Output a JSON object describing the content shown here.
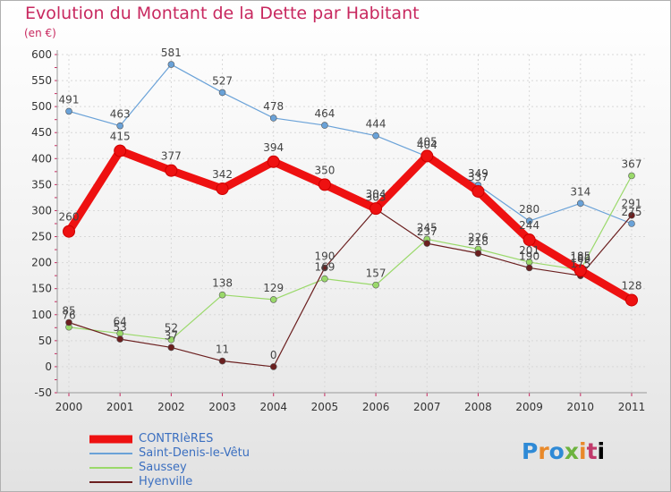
{
  "chart_data": {
    "type": "line",
    "title": "Evolution du Montant de la Dette par Habitant",
    "subtitle": "(en €)",
    "x": [
      "2000",
      "2001",
      "2002",
      "2003",
      "2004",
      "2005",
      "2006",
      "2007",
      "2008",
      "2009",
      "2010",
      "2011"
    ],
    "ylim": [
      -50,
      600
    ],
    "yticks": [
      -50,
      0,
      50,
      100,
      150,
      200,
      250,
      300,
      350,
      400,
      450,
      500,
      550,
      600
    ],
    "grid": true,
    "legend_position": "bottom-left",
    "series": [
      {
        "name": "CONTRIèRES",
        "color": "#ee1111",
        "values": [
          260,
          415,
          377,
          342,
          394,
          350,
          304,
          405,
          337,
          244,
          185,
          128
        ]
      },
      {
        "name": "Saint-Denis-le-Vêtu",
        "color": "#6aa2d8",
        "values": [
          491,
          463,
          581,
          527,
          478,
          464,
          444,
          404,
          349,
          280,
          314,
          275
        ]
      },
      {
        "name": "Saussey",
        "color": "#9ad96a",
        "values": [
          76,
          64,
          52,
          138,
          129,
          169,
          157,
          245,
          226,
          201,
          186,
          367
        ]
      },
      {
        "name": "Hyenville",
        "color": "#6b1f1f",
        "values": [
          85,
          53,
          37,
          11,
          0,
          190,
          303,
          237,
          218,
          190,
          175,
          291
        ]
      }
    ]
  },
  "logo": {
    "text": "Proxiti"
  }
}
